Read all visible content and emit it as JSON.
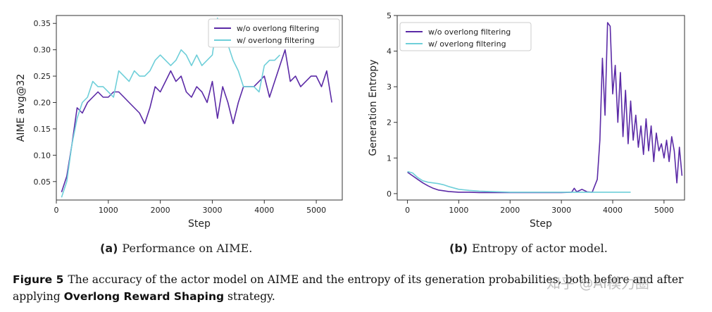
{
  "colors": {
    "purple": "#5b2aa6",
    "cyan": "#6fcfd9"
  },
  "chart_data": [
    {
      "type": "line",
      "panel": "a",
      "xlabel": "Step",
      "ylabel": "AIME avg@32",
      "xlim": [
        0,
        5500
      ],
      "ylim": [
        0.015,
        0.365
      ],
      "xticks": [
        0,
        1000,
        2000,
        3000,
        4000,
        5000
      ],
      "yticks": [
        0.05,
        0.1,
        0.15,
        0.2,
        0.25,
        0.3,
        0.35
      ],
      "ytick_labels": [
        "0.05",
        "0.10",
        "0.15",
        "0.20",
        "0.25",
        "0.30",
        "0.35"
      ],
      "legend_position": "top-right",
      "grid": false,
      "series": [
        {
          "name": "w/o overlong filtering",
          "color": "#5b2aa6",
          "x": [
            100,
            200,
            300,
            400,
            500,
            600,
            700,
            800,
            900,
            1000,
            1100,
            1200,
            1300,
            1400,
            1500,
            1600,
            1700,
            1800,
            1900,
            2000,
            2100,
            2200,
            2300,
            2400,
            2500,
            2600,
            2700,
            2800,
            2900,
            3000,
            3100,
            3200,
            3300,
            3400,
            3500,
            3600,
            3700,
            3800,
            3900,
            4000,
            4100,
            4200,
            4300,
            4400,
            4500,
            4600,
            4700,
            4800,
            4900,
            5000,
            5100,
            5200,
            5300
          ],
          "y": [
            0.03,
            0.06,
            0.12,
            0.19,
            0.18,
            0.2,
            0.21,
            0.22,
            0.21,
            0.21,
            0.22,
            0.22,
            0.21,
            0.2,
            0.19,
            0.18,
            0.16,
            0.19,
            0.23,
            0.22,
            0.24,
            0.26,
            0.24,
            0.25,
            0.22,
            0.21,
            0.23,
            0.22,
            0.2,
            0.24,
            0.17,
            0.23,
            0.2,
            0.16,
            0.2,
            0.23,
            0.23,
            0.23,
            0.24,
            0.25,
            0.21,
            0.24,
            0.27,
            0.3,
            0.24,
            0.25,
            0.23,
            0.24,
            0.25,
            0.25,
            0.23,
            0.26,
            0.2
          ]
        },
        {
          "name": "w/ overlong filtering",
          "color": "#6fcfd9",
          "x": [
            100,
            200,
            300,
            400,
            500,
            600,
            700,
            800,
            900,
            1000,
            1100,
            1200,
            1300,
            1400,
            1500,
            1600,
            1700,
            1800,
            1900,
            2000,
            2100,
            2200,
            2300,
            2400,
            2500,
            2600,
            2700,
            2800,
            2900,
            3000,
            3100,
            3200,
            3300,
            3400,
            3500,
            3600,
            3700,
            3800,
            3900,
            4000,
            4100,
            4200,
            4300
          ],
          "y": [
            0.02,
            0.05,
            0.12,
            0.17,
            0.2,
            0.21,
            0.24,
            0.23,
            0.23,
            0.22,
            0.21,
            0.26,
            0.25,
            0.24,
            0.26,
            0.25,
            0.25,
            0.26,
            0.28,
            0.29,
            0.28,
            0.27,
            0.28,
            0.3,
            0.29,
            0.27,
            0.29,
            0.27,
            0.28,
            0.29,
            0.36,
            0.31,
            0.31,
            0.28,
            0.26,
            0.23,
            0.23,
            0.23,
            0.22,
            0.27,
            0.28,
            0.28,
            0.29
          ]
        }
      ]
    },
    {
      "type": "line",
      "panel": "b",
      "xlabel": "Step",
      "ylabel": "Generation Entropy",
      "xlim": [
        -200,
        5400
      ],
      "ylim": [
        -0.18,
        5.0
      ],
      "xticks": [
        0,
        1000,
        2000,
        3000,
        4000,
        5000
      ],
      "yticks": [
        0,
        1,
        2,
        3,
        4,
        5
      ],
      "ytick_labels": [
        "0",
        "1",
        "2",
        "3",
        "4",
        "5"
      ],
      "legend_position": "top-left",
      "grid": false,
      "series": [
        {
          "name": "w/o overlong filtering",
          "color": "#5b2aa6",
          "x": [
            0,
            100,
            200,
            300,
            400,
            500,
            600,
            700,
            800,
            900,
            1000,
            1200,
            1400,
            1600,
            1800,
            2000,
            2200,
            2400,
            2600,
            2800,
            3000,
            3200,
            3250,
            3300,
            3400,
            3500,
            3600,
            3700,
            3750,
            3800,
            3850,
            3900,
            3950,
            4000,
            4050,
            4100,
            4150,
            4200,
            4250,
            4300,
            4350,
            4400,
            4450,
            4500,
            4550,
            4600,
            4650,
            4700,
            4750,
            4800,
            4850,
            4900,
            4950,
            5000,
            5050,
            5100,
            5150,
            5200,
            5250,
            5300,
            5350
          ],
          "y": [
            0.6,
            0.5,
            0.4,
            0.3,
            0.22,
            0.15,
            0.1,
            0.08,
            0.06,
            0.05,
            0.04,
            0.04,
            0.03,
            0.03,
            0.03,
            0.03,
            0.03,
            0.03,
            0.03,
            0.03,
            0.03,
            0.04,
            0.15,
            0.05,
            0.12,
            0.05,
            0.04,
            0.4,
            1.5,
            3.8,
            2.2,
            4.8,
            4.7,
            2.8,
            3.6,
            2.0,
            3.4,
            1.6,
            2.9,
            1.4,
            2.6,
            1.5,
            2.2,
            1.3,
            1.9,
            1.1,
            2.1,
            1.2,
            1.9,
            0.9,
            1.7,
            1.2,
            1.4,
            1.0,
            1.5,
            0.9,
            1.6,
            1.2,
            0.3,
            1.3,
            0.5
          ]
        },
        {
          "name": "w/ overlong filtering",
          "color": "#6fcfd9",
          "x": [
            0,
            100,
            200,
            300,
            400,
            500,
            600,
            700,
            800,
            900,
            1000,
            1200,
            1400,
            1600,
            1800,
            2000,
            2200,
            2400,
            2600,
            2800,
            3000,
            3200,
            3400,
            3600,
            3800,
            4000,
            4200,
            4350
          ],
          "y": [
            0.62,
            0.58,
            0.45,
            0.36,
            0.32,
            0.3,
            0.28,
            0.25,
            0.2,
            0.16,
            0.12,
            0.09,
            0.07,
            0.06,
            0.05,
            0.04,
            0.04,
            0.04,
            0.04,
            0.04,
            0.04,
            0.04,
            0.04,
            0.04,
            0.04,
            0.04,
            0.04,
            0.04
          ]
        }
      ]
    }
  ],
  "subcaptions": {
    "a_label": "(a)",
    "a_text": "Performance on AIME.",
    "b_label": "(b)",
    "b_text": "Entropy of actor model."
  },
  "caption": {
    "fig_label": "Figure 5",
    "text_1": "The accuracy of the actor model on AIME and the entropy of its generation probabilities, both before and after applying ",
    "emph": "Overlong Reward Shaping",
    "text_2": " strategy."
  },
  "watermark": "知乎 @AI模力圈"
}
